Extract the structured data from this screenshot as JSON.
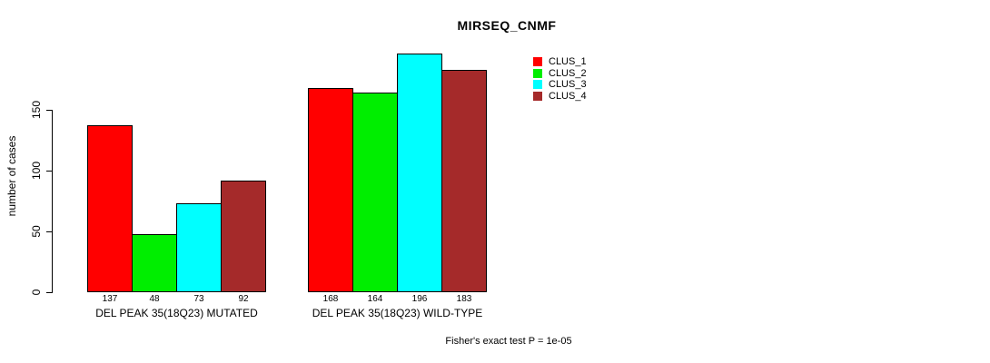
{
  "chart_data": {
    "type": "bar",
    "title": "MIRSEQ_CNMF",
    "ylabel": "number of cases",
    "xlabel": "",
    "ylim": [
      0,
      196
    ],
    "yticks": [
      0,
      50,
      100,
      150
    ],
    "grid": false,
    "legend_position": "right",
    "categories": [
      "DEL PEAK 35(18Q23) MUTATED",
      "DEL PEAK 35(18Q23) WILD-TYPE"
    ],
    "series": [
      {
        "name": "CLUS_1",
        "color": "#FF0000",
        "values": [
          137,
          168
        ]
      },
      {
        "name": "CLUS_2",
        "color": "#00EE00",
        "values": [
          48,
          164
        ]
      },
      {
        "name": "CLUS_3",
        "color": "#00FFFF",
        "values": [
          73,
          196
        ]
      },
      {
        "name": "CLUS_4",
        "color": "#A52A2A",
        "values": [
          92,
          183
        ]
      }
    ],
    "bar_value_labels_shown": true,
    "annotation": "Fisher's exact test P = 1e-05"
  }
}
